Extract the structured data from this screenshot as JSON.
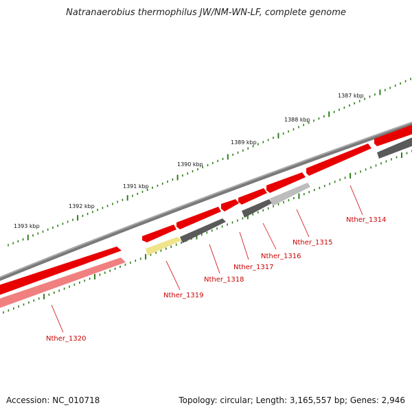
{
  "title": "Natranaerobius thermophilus JW/NM-WN-LF, complete genome",
  "footer": {
    "accession": "Accession: NC_010718",
    "topology": "Topology: circular; Length: 3,165,557 bp; Genes: 2,946"
  },
  "colors": {
    "backbone": "#7a7a7a",
    "tick": "#2e7d1a",
    "gene_label": "#cc0000",
    "forward_gene": "#e80000",
    "reverse_red": "#f08080",
    "reverse_dark": "#5a5a5a",
    "reverse_light": "#bdbdbd",
    "reverse_yellow": "#efe48a"
  },
  "kbp_labels": [
    "1393 kbp",
    "1392 kbp",
    "1391 kbp",
    "1390 kbp",
    "1389 kbp",
    "1388 kbp",
    "1387 kbp"
  ],
  "genes": [
    {
      "label": "Nther_1314",
      "strand": "reverse",
      "color": "reverse_dark"
    },
    {
      "label": "Nther_1315",
      "strand": "reverse",
      "color": "reverse_light"
    },
    {
      "label": "Nther_1316",
      "strand": "reverse",
      "color": "reverse_dark"
    },
    {
      "label": "Nther_1317",
      "strand": "forward",
      "color": "forward_gene"
    },
    {
      "label": "Nther_1318",
      "strand": "reverse",
      "color": "reverse_dark"
    },
    {
      "label": "Nther_1319",
      "strand": "reverse",
      "color": "reverse_yellow"
    },
    {
      "label": "Nther_1320",
      "strand": "reverse",
      "color": "reverse_red"
    }
  ]
}
